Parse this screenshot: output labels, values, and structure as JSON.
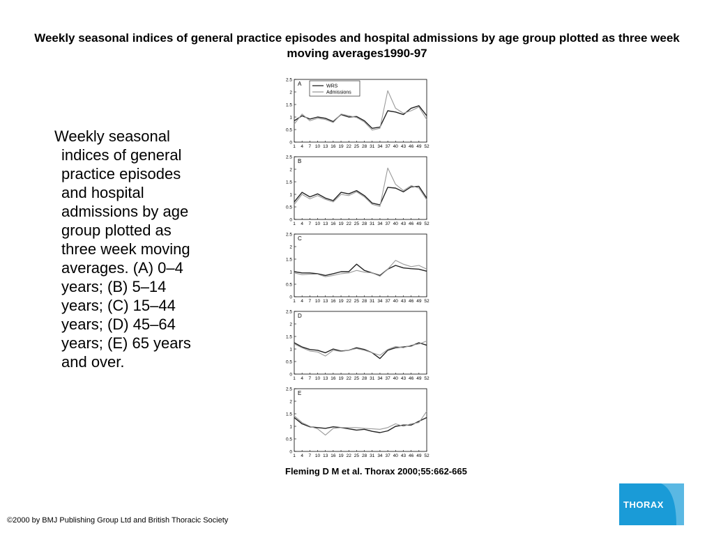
{
  "slide": {
    "title": "Weekly seasonal indices of general practice episodes and hospital admissions by age group plotted as three week moving averages1990-97",
    "caption": "Weekly seasonal indices of general practice episodes and hospital admissions by age group plotted as three week moving averages. (A) 0–4 years; (B) 5–14 years; (C) 15–44 years; (D) 45–64 years; (E) 65 years and over.",
    "citation": "Fleming D M et al. Thorax 2000;55:662-665",
    "copyright": "©2000 by BMJ Publishing Group Ltd and British Thoracic Society",
    "logo_text": "THORAX",
    "colors": {
      "logo_bg": "#1a9bd7",
      "wrs_line": "#222222",
      "admissions_line": "#999999"
    }
  },
  "chart_data": [
    {
      "panel": "A",
      "type": "line",
      "xlim": [
        1,
        52
      ],
      "ylim": [
        0,
        2.5
      ],
      "y_ticks": [
        "0",
        "0.5",
        "1",
        "1.5",
        "2",
        "2.5"
      ],
      "x_ticks": [
        "1",
        "4",
        "7",
        "10",
        "13",
        "16",
        "19",
        "22",
        "25",
        "28",
        "31",
        "34",
        "37",
        "40",
        "43",
        "46",
        "49",
        "52"
      ],
      "legend": [
        "WRS",
        "Admissions"
      ],
      "series": [
        {
          "name": "WRS",
          "x": [
            1,
            4,
            7,
            10,
            13,
            16,
            19,
            22,
            25,
            28,
            31,
            34,
            37,
            40,
            43,
            46,
            49,
            52
          ],
          "y": [
            0.85,
            1.05,
            0.92,
            1.0,
            0.95,
            0.82,
            1.1,
            1.0,
            1.02,
            0.85,
            0.55,
            0.6,
            1.25,
            1.2,
            1.1,
            1.35,
            1.45,
            1.05
          ]
        },
        {
          "name": "Admissions",
          "x": [
            1,
            4,
            7,
            10,
            13,
            16,
            19,
            22,
            25,
            28,
            31,
            34,
            37,
            40,
            43,
            46,
            49,
            52
          ],
          "y": [
            0.72,
            1.12,
            0.85,
            0.95,
            0.9,
            0.78,
            1.12,
            1.05,
            0.98,
            0.8,
            0.48,
            0.55,
            2.05,
            1.35,
            1.15,
            1.25,
            1.4,
            0.9
          ]
        }
      ]
    },
    {
      "panel": "B",
      "type": "line",
      "xlim": [
        1,
        52
      ],
      "ylim": [
        0,
        2.5
      ],
      "y_ticks": [
        "0",
        "0.5",
        "1",
        "1.5",
        "2",
        "2.5"
      ],
      "x_ticks": [
        "1",
        "4",
        "7",
        "10",
        "13",
        "16",
        "19",
        "22",
        "25",
        "28",
        "31",
        "34",
        "37",
        "40",
        "43",
        "46",
        "49",
        "52"
      ],
      "series": [
        {
          "name": "WRS",
          "x": [
            1,
            4,
            7,
            10,
            13,
            16,
            19,
            22,
            25,
            28,
            31,
            34,
            37,
            40,
            43,
            46,
            49,
            52
          ],
          "y": [
            0.7,
            1.08,
            0.9,
            1.02,
            0.85,
            0.75,
            1.08,
            1.02,
            1.15,
            0.95,
            0.65,
            0.58,
            1.28,
            1.25,
            1.1,
            1.3,
            1.32,
            0.85
          ]
        },
        {
          "name": "Admissions",
          "x": [
            1,
            4,
            7,
            10,
            13,
            16,
            19,
            22,
            25,
            28,
            31,
            34,
            37,
            40,
            43,
            46,
            49,
            52
          ],
          "y": [
            0.6,
            1.0,
            0.82,
            0.95,
            0.8,
            0.7,
            1.0,
            0.95,
            1.1,
            0.9,
            0.6,
            0.52,
            2.05,
            1.4,
            1.15,
            1.35,
            1.25,
            0.78
          ]
        }
      ]
    },
    {
      "panel": "C",
      "type": "line",
      "xlim": [
        1,
        52
      ],
      "ylim": [
        0,
        2.5
      ],
      "y_ticks": [
        "0",
        "0.5",
        "1",
        "1.5",
        "2",
        "2.5"
      ],
      "x_ticks": [
        "1",
        "4",
        "7",
        "10",
        "13",
        "16",
        "19",
        "22",
        "25",
        "28",
        "31",
        "34",
        "37",
        "40",
        "43",
        "46",
        "49",
        "52"
      ],
      "series": [
        {
          "name": "WRS",
          "x": [
            1,
            4,
            7,
            10,
            13,
            16,
            19,
            22,
            25,
            28,
            31,
            34,
            37,
            40,
            43,
            46,
            49,
            52
          ],
          "y": [
            1.0,
            0.95,
            0.95,
            0.92,
            0.85,
            0.92,
            1.0,
            1.0,
            1.3,
            1.05,
            0.95,
            0.85,
            1.1,
            1.25,
            1.15,
            1.12,
            1.1,
            1.02
          ]
        },
        {
          "name": "Admissions",
          "x": [
            1,
            4,
            7,
            10,
            13,
            16,
            19,
            22,
            25,
            28,
            31,
            34,
            37,
            40,
            43,
            46,
            49,
            52
          ],
          "y": [
            0.95,
            0.88,
            0.9,
            0.9,
            0.8,
            0.85,
            0.92,
            0.95,
            1.05,
            0.98,
            0.95,
            0.82,
            1.1,
            1.45,
            1.3,
            1.2,
            1.25,
            1.1
          ]
        }
      ]
    },
    {
      "panel": "D",
      "type": "line",
      "xlim": [
        1,
        52
      ],
      "ylim": [
        0,
        2.5
      ],
      "y_ticks": [
        "0",
        "0.5",
        "1",
        "1.5",
        "2",
        "2.5"
      ],
      "x_ticks": [
        "1",
        "4",
        "7",
        "10",
        "13",
        "16",
        "19",
        "22",
        "25",
        "28",
        "31",
        "34",
        "37",
        "40",
        "43",
        "46",
        "49",
        "52"
      ],
      "series": [
        {
          "name": "WRS",
          "x": [
            1,
            4,
            7,
            10,
            13,
            16,
            19,
            22,
            25,
            28,
            31,
            34,
            37,
            40,
            43,
            46,
            49,
            52
          ],
          "y": [
            1.25,
            1.08,
            0.98,
            0.95,
            0.85,
            1.0,
            0.92,
            0.95,
            1.05,
            0.98,
            0.85,
            0.62,
            0.95,
            1.05,
            1.08,
            1.12,
            1.25,
            1.15
          ]
        },
        {
          "name": "Admissions",
          "x": [
            1,
            4,
            7,
            10,
            13,
            16,
            19,
            22,
            25,
            28,
            31,
            34,
            37,
            40,
            43,
            46,
            49,
            52
          ],
          "y": [
            1.2,
            1.05,
            0.92,
            0.88,
            0.72,
            0.95,
            0.9,
            0.95,
            1.02,
            0.95,
            0.85,
            0.75,
            0.98,
            1.1,
            1.05,
            1.15,
            1.2,
            1.32
          ]
        }
      ]
    },
    {
      "panel": "E",
      "type": "line",
      "xlim": [
        1,
        52
      ],
      "ylim": [
        0,
        2.5
      ],
      "y_ticks": [
        "0",
        "0.5",
        "1",
        "1.5",
        "2",
        "2.5"
      ],
      "x_ticks": [
        "1",
        "4",
        "7",
        "10",
        "13",
        "16",
        "19",
        "22",
        "25",
        "28",
        "31",
        "34",
        "37",
        "40",
        "43",
        "46",
        "49",
        "52"
      ],
      "series": [
        {
          "name": "WRS",
          "x": [
            1,
            4,
            7,
            10,
            13,
            16,
            19,
            22,
            25,
            28,
            31,
            34,
            37,
            40,
            43,
            46,
            49,
            52
          ],
          "y": [
            1.35,
            1.1,
            0.98,
            0.95,
            0.92,
            0.98,
            0.95,
            0.9,
            0.85,
            0.88,
            0.8,
            0.75,
            0.82,
            1.0,
            1.05,
            1.05,
            1.2,
            1.35
          ]
        },
        {
          "name": "Admissions",
          "x": [
            1,
            4,
            7,
            10,
            13,
            16,
            19,
            22,
            25,
            28,
            31,
            34,
            37,
            40,
            43,
            46,
            49,
            52
          ],
          "y": [
            1.42,
            1.15,
            1.0,
            0.9,
            0.65,
            0.92,
            0.95,
            0.95,
            0.95,
            0.92,
            0.9,
            0.88,
            0.95,
            1.1,
            1.0,
            1.1,
            1.15,
            1.6
          ]
        }
      ]
    }
  ]
}
